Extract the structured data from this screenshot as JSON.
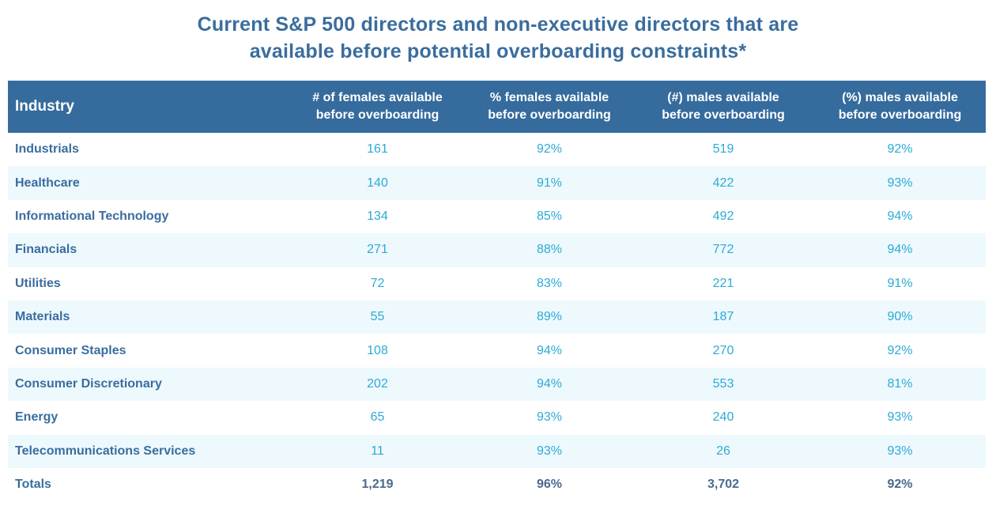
{
  "title": {
    "line1": "Current S&P 500 directors and non-executive directors that are",
    "line2": "available before potential overboarding constraints*"
  },
  "table": {
    "headers": {
      "industry": "Industry",
      "col1": [
        "# of females available",
        "before overboarding"
      ],
      "col2": [
        "% females available",
        "before overboarding"
      ],
      "col3": [
        "(#) males available",
        "before overboarding"
      ],
      "col4": [
        "(%) males available",
        "before overboarding"
      ]
    },
    "rows": [
      {
        "industry": "Industrials",
        "females_n": "161",
        "females_pct": "92%",
        "males_n": "519",
        "males_pct": "92%"
      },
      {
        "industry": "Healthcare",
        "females_n": "140",
        "females_pct": "91%",
        "males_n": "422",
        "males_pct": "93%"
      },
      {
        "industry": "Informational Technology",
        "females_n": "134",
        "females_pct": "85%",
        "males_n": "492",
        "males_pct": "94%"
      },
      {
        "industry": "Financials",
        "females_n": "271",
        "females_pct": "88%",
        "males_n": "772",
        "males_pct": "94%"
      },
      {
        "industry": "Utilities",
        "females_n": "72",
        "females_pct": "83%",
        "males_n": "221",
        "males_pct": "91%"
      },
      {
        "industry": "Materials",
        "females_n": "55",
        "females_pct": "89%",
        "males_n": "187",
        "males_pct": "90%"
      },
      {
        "industry": "Consumer Staples",
        "females_n": "108",
        "females_pct": "94%",
        "males_n": "270",
        "males_pct": "92%"
      },
      {
        "industry": "Consumer Discretionary",
        "females_n": "202",
        "females_pct": "94%",
        "males_n": "553",
        "males_pct": "81%"
      },
      {
        "industry": "Energy",
        "females_n": "65",
        "females_pct": "93%",
        "males_n": "240",
        "males_pct": "93%"
      },
      {
        "industry": "Telecommunications Services",
        "females_n": "11",
        "females_pct": "93%",
        "males_n": "26",
        "males_pct": "93%"
      }
    ],
    "totals": {
      "industry": "Totals",
      "females_n": "1,219",
      "females_pct": "96%",
      "males_n": "3,702",
      "males_pct": "92%"
    }
  },
  "colors": {
    "header_bg": "#356b9d",
    "title_text": "#3a6d9e",
    "value_text": "#2caad6",
    "stripe_bg": "#eef9fd"
  }
}
